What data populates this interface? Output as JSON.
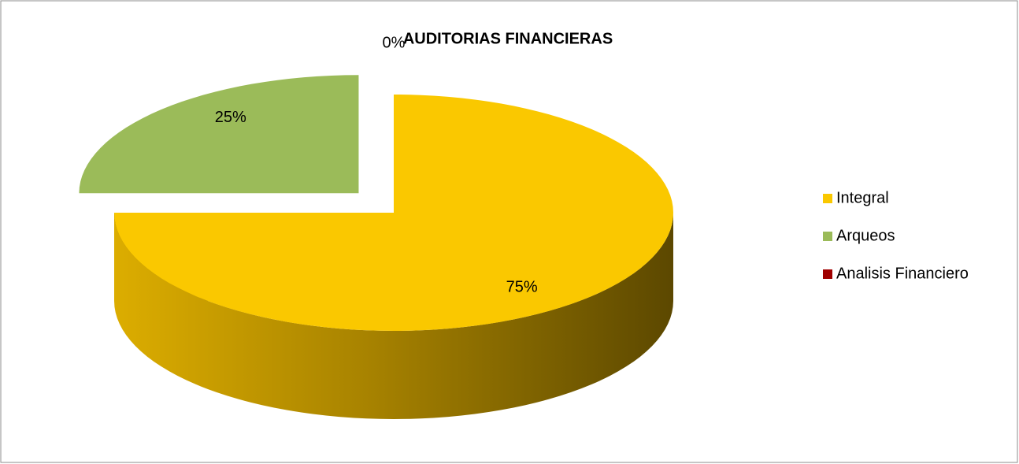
{
  "chart_data": {
    "type": "pie",
    "title": "AUDITORIAS FINANCIERAS",
    "categories": [
      "Integral",
      "Arqueos",
      "Analisis Financiero"
    ],
    "values": [
      75,
      25,
      0
    ],
    "value_labels": [
      "75%",
      "25%",
      "0%"
    ],
    "colors": [
      "#fac800",
      "#9bbb59",
      "#a00000"
    ],
    "legend": "right"
  }
}
